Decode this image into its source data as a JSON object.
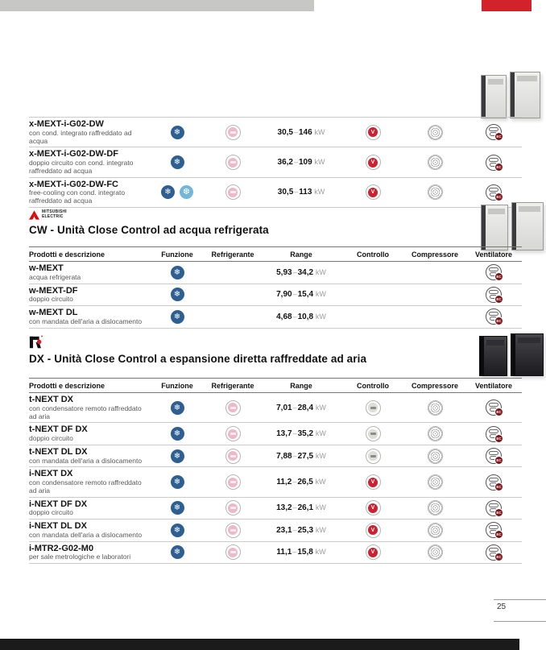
{
  "table_headers": [
    "Prodotti e descrizione",
    "Funzione",
    "Refrigerante",
    "Range",
    "Controllo",
    "Compressore",
    "Ventilatore"
  ],
  "icons": {
    "cooling_glyph": "❄",
    "free_cooling_glyph": "❆",
    "controllo_red_label": "V",
    "ventilatore_badge_label": "EC"
  },
  "colors": {
    "accent_red": "#d2232a",
    "function_blue": "#2e5f92",
    "free_cooling_blue": "#74b6d9",
    "refrigerant_pink": "#edb9c8",
    "controllo_red": "#cf2030",
    "top_bar_gray": "#c7c7c6",
    "footer_black": "#1b1b1b"
  },
  "sections": [
    {
      "id": "xmext-continued",
      "title": "",
      "rows": [
        {
          "name": "x-MEXT-i-G02-DW",
          "desc": "con cond. integrato raffreddato ad acqua",
          "funzione": [
            "cooling"
          ],
          "refrigerante": true,
          "range": {
            "min": "30,5",
            "max": "146",
            "unit": "kW"
          },
          "controllo": "red",
          "compressore": true,
          "ventilatore": true
        },
        {
          "name": "x-MEXT-i-G02-DW-DF",
          "desc": "doppio circuito con cond. integrato raffreddato ad acqua",
          "funzione": [
            "cooling"
          ],
          "refrigerante": true,
          "range": {
            "min": "36,2",
            "max": "109",
            "unit": "kW"
          },
          "controllo": "red",
          "compressore": true,
          "ventilatore": true
        },
        {
          "name": "x-MEXT-i-G02-DW-FC",
          "desc": "free-cooling con cond. integrato raffreddato ad acqua",
          "funzione": [
            "cooling",
            "freecooling"
          ],
          "refrigerante": true,
          "range": {
            "min": "30,5",
            "max": "113",
            "unit": "kW"
          },
          "controllo": "red",
          "compressore": true,
          "ventilatore": true
        }
      ]
    },
    {
      "id": "cw",
      "brand": {
        "line1": "MITSUBISHI",
        "line2": "ELECTRIC"
      },
      "title": "CW - Unità Close Control ad acqua refrigerata",
      "rows": [
        {
          "name": "w-MEXT",
          "desc": "acqua refrigerata",
          "funzione": [
            "cooling"
          ],
          "refrigerante": false,
          "range": {
            "min": "5,93",
            "max": "34,2",
            "unit": "kW"
          },
          "controllo": null,
          "compressore": false,
          "ventilatore": true
        },
        {
          "name": "w-MEXT-DF",
          "desc": "doppio circuito",
          "funzione": [
            "cooling"
          ],
          "refrigerante": false,
          "range": {
            "min": "7,90",
            "max": "15,4",
            "unit": "kW"
          },
          "controllo": null,
          "compressore": false,
          "ventilatore": true
        },
        {
          "name": "w-MEXT DL",
          "desc": "con mandata dell'aria a dislocamento",
          "funzione": [
            "cooling"
          ],
          "refrigerante": false,
          "range": {
            "min": "4,68",
            "max": "10,8",
            "unit": "kW"
          },
          "controllo": null,
          "compressore": false,
          "ventilatore": true
        }
      ]
    },
    {
      "id": "dx",
      "title": "DX - Unità Close Control a espansione diretta raffreddate ad aria",
      "rows": [
        {
          "name": "t-NEXT DX",
          "desc": "con condensatore remoto raffreddato ad aria",
          "funzione": [
            "cooling"
          ],
          "refrigerante": true,
          "range": {
            "min": "7,01",
            "max": "28,4",
            "unit": "kW"
          },
          "controllo": "gray",
          "compressore": true,
          "ventilatore": true
        },
        {
          "name": "t-NEXT DF DX",
          "desc": "doppio circuito",
          "funzione": [
            "cooling"
          ],
          "refrigerante": true,
          "range": {
            "min": "13,7",
            "max": "35,2",
            "unit": "kW"
          },
          "controllo": "gray",
          "compressore": true,
          "ventilatore": true
        },
        {
          "name": "t-NEXT DL DX",
          "desc": "con mandata dell'aria a dislocamento",
          "funzione": [
            "cooling"
          ],
          "refrigerante": true,
          "range": {
            "min": "7,88",
            "max": "27,5",
            "unit": "kW"
          },
          "controllo": "gray",
          "compressore": true,
          "ventilatore": true
        },
        {
          "name": "i-NEXT DX",
          "desc": "con condensatore remoto raffreddato ad aria",
          "funzione": [
            "cooling"
          ],
          "refrigerante": true,
          "range": {
            "min": "11,2",
            "max": "26,5",
            "unit": "kW"
          },
          "controllo": "red",
          "compressore": true,
          "ventilatore": true
        },
        {
          "name": "i-NEXT DF DX",
          "desc": "doppio circuito",
          "funzione": [
            "cooling"
          ],
          "refrigerante": true,
          "range": {
            "min": "13,2",
            "max": "26,1",
            "unit": "kW"
          },
          "controllo": "red",
          "compressore": true,
          "ventilatore": true
        },
        {
          "name": "i-NEXT DL DX",
          "desc": "con mandata dell'aria a dislocamento",
          "funzione": [
            "cooling"
          ],
          "refrigerante": true,
          "range": {
            "min": "23,1",
            "max": "25,3",
            "unit": "kW"
          },
          "controllo": "red",
          "compressore": true,
          "ventilatore": true
        },
        {
          "name": "i-MTR2-G02-M0",
          "desc": "per sale metrologiche e laboratori",
          "funzione": [
            "cooling"
          ],
          "refrigerante": true,
          "range": {
            "min": "11,1",
            "max": "15,8",
            "unit": "kW"
          },
          "controllo": "red",
          "compressore": true,
          "ventilatore": true
        }
      ]
    }
  ],
  "footer": {
    "page_number": "25"
  }
}
